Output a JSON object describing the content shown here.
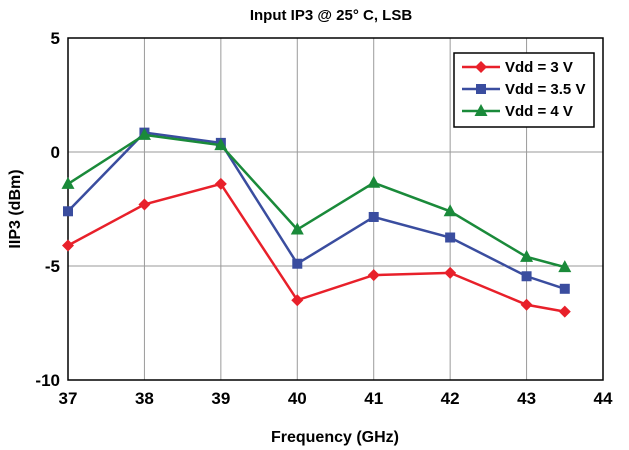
{
  "chart_data": {
    "type": "line",
    "title": "Input IP3 @ 25° C, LSB",
    "xlabel": "Frequency (GHz)",
    "ylabel": "IIP3 (dBm)",
    "xlim": [
      37,
      44
    ],
    "ylim": [
      -10,
      5
    ],
    "xticks": [
      37,
      38,
      39,
      40,
      41,
      42,
      43,
      44
    ],
    "yticks": [
      5,
      0,
      -5,
      -10
    ],
    "grid": true,
    "legend_position": "top-right",
    "x": [
      37,
      38,
      39,
      40,
      41,
      42,
      43,
      43.5
    ],
    "series": [
      {
        "name": "Vdd = 3 V",
        "color": "#e8202a",
        "marker": "diamond",
        "values": [
          -4.1,
          -2.3,
          -1.4,
          -6.5,
          -5.4,
          -5.3,
          -6.7,
          -7.0
        ]
      },
      {
        "name": "Vdd = 3.5 V",
        "color": "#3a4d9f",
        "marker": "square",
        "values": [
          -2.6,
          0.85,
          0.4,
          -4.9,
          -2.85,
          -3.75,
          -5.45,
          -6.0
        ]
      },
      {
        "name": "Vdd = 4 V",
        "color": "#1a8a3a",
        "marker": "triangle",
        "values": [
          -1.4,
          0.75,
          0.3,
          -3.4,
          -1.35,
          -2.6,
          -4.6,
          -5.05
        ]
      }
    ]
  }
}
